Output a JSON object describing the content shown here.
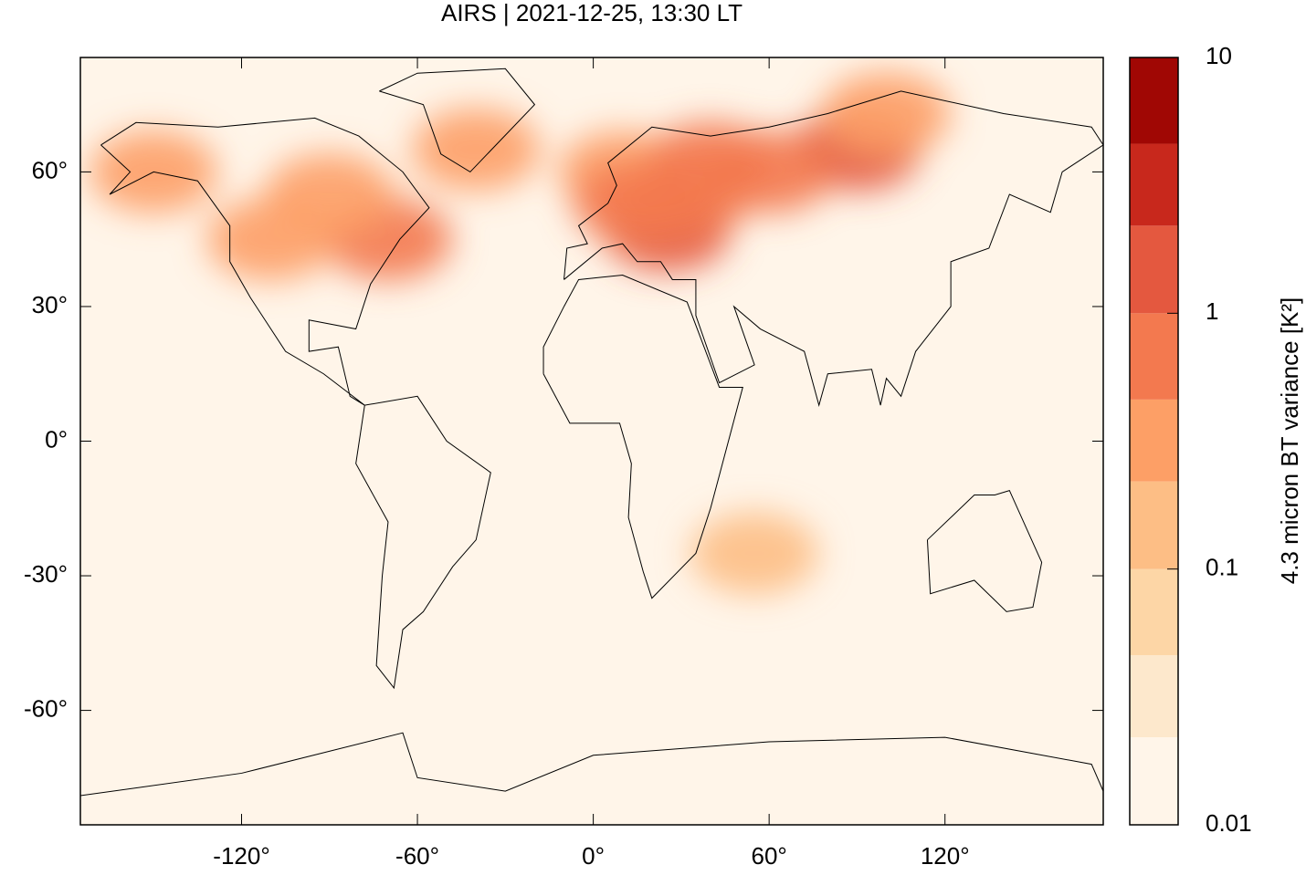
{
  "chart_data": {
    "type": "map",
    "title": "AIRS | 2021-12-25, 13:30 LT",
    "xlim": [
      -175,
      174
    ],
    "ylim": [
      -85.5,
      85.5
    ],
    "xticks": [
      {
        "value": -120,
        "label": "-120°"
      },
      {
        "value": -60,
        "label": "-60°"
      },
      {
        "value": 0,
        "label": "0°"
      },
      {
        "value": 60,
        "label": "60°"
      },
      {
        "value": 120,
        "label": "120°"
      }
    ],
    "yticks": [
      {
        "value": -60,
        "label": "-60°"
      },
      {
        "value": -30,
        "label": "-30°"
      },
      {
        "value": 0,
        "label": "0°"
      },
      {
        "value": 30,
        "label": "30°"
      },
      {
        "value": 60,
        "label": "60°"
      }
    ],
    "field": {
      "x": [
        25,
        32,
        90,
        60,
        -70,
        -110,
        -150,
        -40,
        10,
        100,
        -90,
        55,
        40,
        15
      ],
      "y": [
        47,
        55,
        65,
        60,
        45,
        45,
        60,
        65,
        60,
        73,
        55,
        -25,
        62,
        53
      ],
      "values": [
        1.2,
        0.8,
        1.0,
        0.5,
        0.5,
        0.4,
        0.4,
        0.3,
        0.4,
        0.4,
        0.3,
        0.15,
        0.6,
        0.5
      ]
    },
    "colorbar": {
      "label": "4.3 micron BT variance [K²]",
      "log": true,
      "lim": [
        0.01,
        10
      ],
      "ticks": [
        0.01,
        0.1,
        1,
        10
      ],
      "levels": [
        0.01,
        0.022,
        0.046,
        0.1,
        0.22,
        0.46,
        1,
        2.2,
        4.6,
        10
      ],
      "colors": [
        "#fff5e9",
        "#fde8cc",
        "#fdd6a6",
        "#fdbe85",
        "#fd9f66",
        "#f3794f",
        "#e4583f",
        "#c8281c",
        "#a00704"
      ]
    }
  }
}
